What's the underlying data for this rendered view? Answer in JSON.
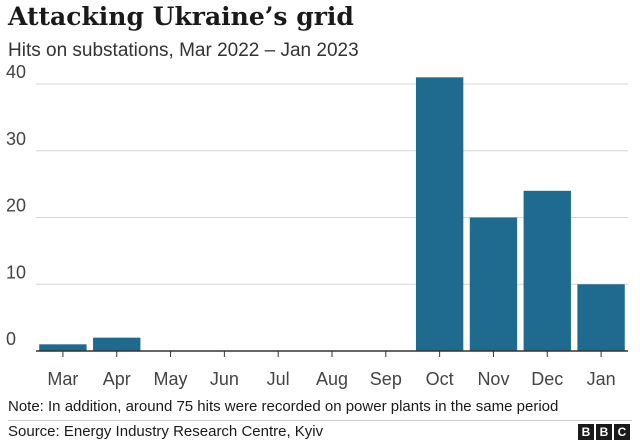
{
  "header": {
    "title": "Attacking Ukraine’s grid",
    "subtitle": "Hits on substations, Mar 2022 – Jan 2023"
  },
  "chart_data": {
    "type": "bar",
    "title": "Attacking Ukraine’s grid",
    "subtitle": "Hits on substations, Mar 2022 – Jan 2023",
    "categories": [
      "Mar",
      "Apr",
      "May",
      "Jun",
      "Jul",
      "Aug",
      "Sep",
      "Oct",
      "Nov",
      "Dec",
      "Jan"
    ],
    "values": [
      1,
      2,
      0,
      0,
      0,
      0,
      0,
      41,
      20,
      24,
      10
    ],
    "ylim": [
      0,
      40
    ],
    "yticks": [
      0,
      10,
      20,
      30,
      40
    ],
    "xlabel": "",
    "ylabel": "",
    "grid": true,
    "bar_color": "#1f6b8f",
    "grid_color": "#d6d6d6"
  },
  "footer": {
    "note": "Note: In addition, around 75 hits were recorded on power plants in the same period",
    "source": "Source: Energy Industry Research Centre, Kyiv",
    "logo_letters": [
      "B",
      "B",
      "C"
    ]
  }
}
